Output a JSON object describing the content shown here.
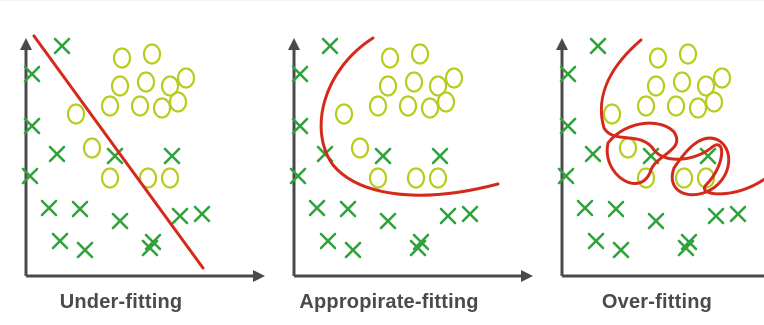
{
  "panels": [
    {
      "id": "under",
      "caption": "Under-fitting",
      "fit_kind": "linear"
    },
    {
      "id": "appropriate",
      "caption": "Appropirate-fitting",
      "fit_kind": "smooth-curve"
    },
    {
      "id": "over",
      "caption": "Over-fitting",
      "fit_kind": "overfit-curve"
    }
  ],
  "markers": {
    "x_class": "X",
    "o_class": "O"
  },
  "colors": {
    "axis": "#4a4a4a",
    "x_marker": "#2fa33c",
    "o_marker": "#b7cc1a",
    "fit_line": "#d42a1c",
    "caption": "#4a4a4a"
  }
}
